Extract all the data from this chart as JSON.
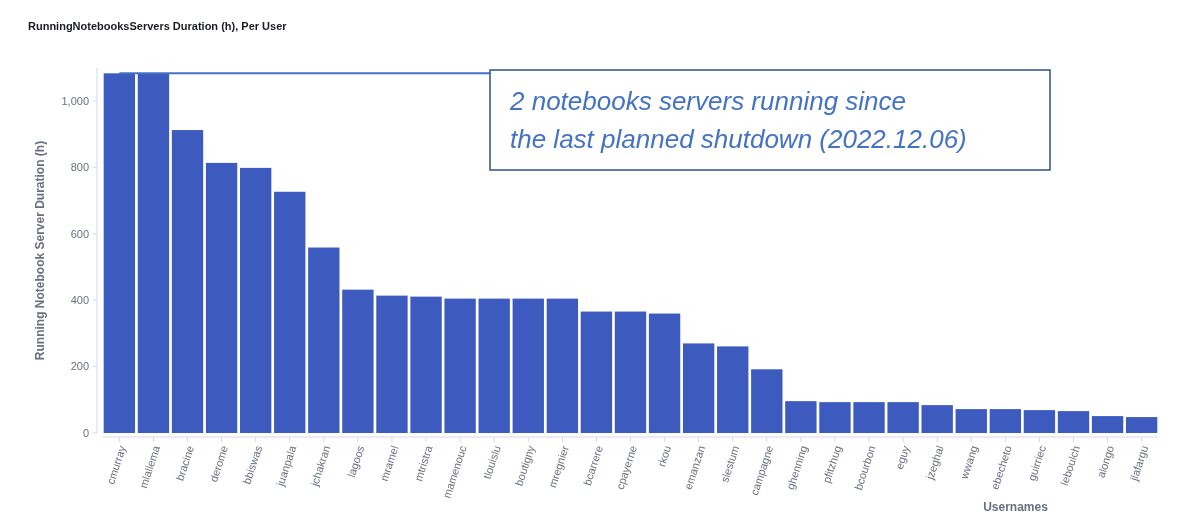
{
  "chart_data": {
    "type": "bar",
    "title": "RunningNotebooksServers Duration (h), Per User",
    "xlabel": "Usernames",
    "ylabel": "Running Notebook Server Duration (h)",
    "categories": [
      "cmurray",
      "mlallema",
      "bracine",
      "derome",
      "bbiswas",
      "juanpala",
      "jchakran",
      "lagoos",
      "mramel",
      "mtristra",
      "mamenouc",
      "tlouislu",
      "boutigny",
      "mregnier",
      "bcarrere",
      "cpayerne",
      "rkou",
      "emanzan",
      "slestum",
      "campagne",
      "ghenning",
      "pfitzhug",
      "bcourbon",
      "eguy",
      "jzeghal",
      "wwang",
      "ebecheto",
      "guirriec",
      "leboulch",
      "alongo",
      "jlafargu"
    ],
    "values": [
      1084,
      1084,
      913,
      814,
      799,
      727,
      559,
      432,
      414,
      411,
      405,
      405,
      405,
      405,
      366,
      366,
      360,
      270,
      261,
      192,
      96,
      93,
      93,
      93,
      84,
      72,
      72,
      69,
      66,
      51,
      48
    ],
    "color": "#3d5abf",
    "ylim": [
      0,
      1100
    ],
    "yticks": [
      0,
      200,
      400,
      600,
      800,
      {
        "value": 1000,
        "label": "1,000"
      }
    ],
    "grid": false,
    "annotations": [
      {
        "text": "2 notebooks servers running since\nthe last planned shutdown (2022.12.06)",
        "x": "cmurray",
        "y": 1084
      }
    ]
  }
}
